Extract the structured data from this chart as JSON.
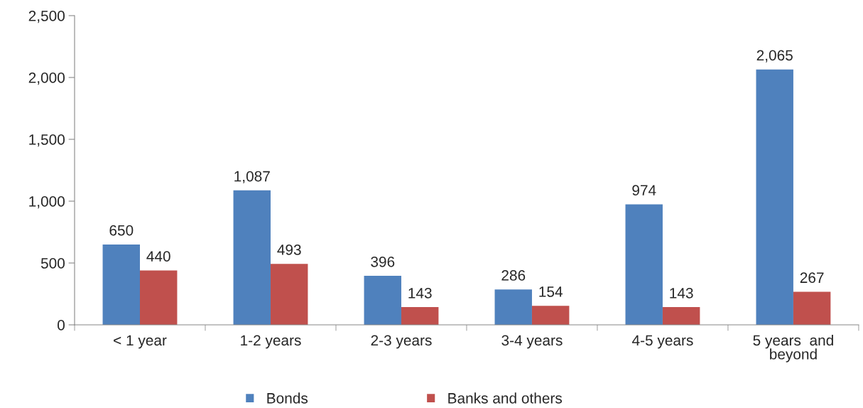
{
  "chart_data": {
    "type": "bar",
    "categories": [
      "< 1 year",
      "1-2 years",
      "2-3 years",
      "3-4 years",
      "4-5 years",
      "5 years  and\nbeyond"
    ],
    "series": [
      {
        "name": "Bonds",
        "color": "#4f81bd",
        "values": [
          650,
          1087,
          396,
          286,
          974,
          2065
        ],
        "value_labels": [
          "650",
          "1,087",
          "396",
          "286",
          "974",
          "2,065"
        ]
      },
      {
        "name": "Banks and others",
        "color": "#c0504d",
        "values": [
          440,
          493,
          143,
          154,
          143,
          267
        ],
        "value_labels": [
          "440",
          "493",
          "143",
          "154",
          "143",
          "267"
        ]
      }
    ],
    "ylim": [
      0,
      2500
    ],
    "yticks": [
      0,
      500,
      {
        "value": 1000,
        "label": "1,000"
      },
      {
        "value": 1500,
        "label": "1,500"
      },
      {
        "value": 2000,
        "label": "2,000"
      },
      {
        "value": 2500,
        "label": "2,500"
      }
    ],
    "grid": false,
    "legend": "bottom"
  }
}
